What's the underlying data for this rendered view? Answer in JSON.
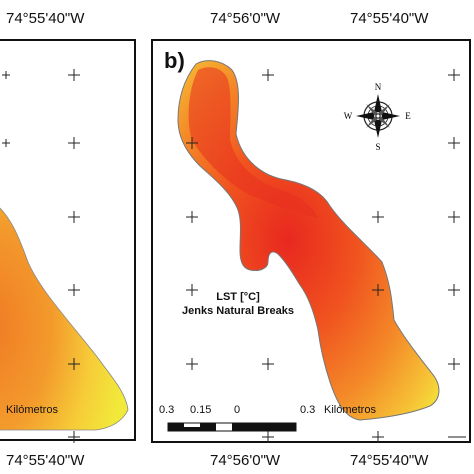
{
  "top_labels": [
    "74°55'40\"W",
    "74°56'0\"W",
    "74°55'40\"W"
  ],
  "bottom_labels": [
    "74°55'40\"W",
    "74°56'0\"W",
    "74°55'40\"W"
  ],
  "panel_b": {
    "label": "b)",
    "legend": {
      "title_line1": "LST [°C]",
      "title_line2": "Jenks Natural Breaks"
    },
    "scale": {
      "ticks": [
        "0.3",
        "0.15",
        "0"
      ],
      "end_label": "0.3",
      "unit": "Kilómetros"
    }
  },
  "panel_a": {
    "scale_unit": "Kilómetros"
  },
  "compass": {
    "n": "N",
    "s": "S",
    "e": "E",
    "w": "W"
  },
  "colors": {
    "hot": "#e8281f",
    "warm": "#f47a24",
    "mild": "#f7c33a",
    "cool": "#f2ea3c",
    "frame": "#111111"
  }
}
